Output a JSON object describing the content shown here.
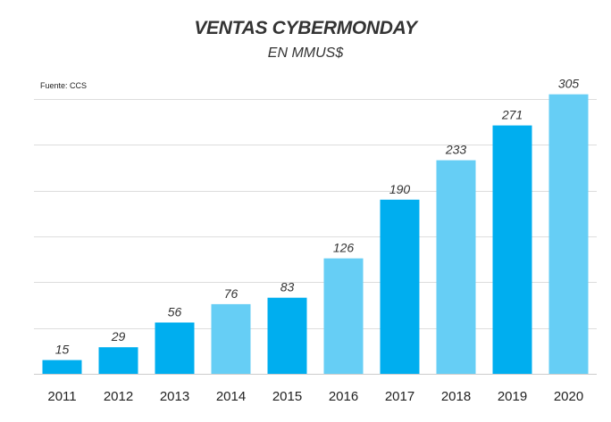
{
  "chart_data": {
    "type": "bar",
    "title": "VENTAS CYBERMONDAY",
    "subtitle": "EN MMUS$",
    "source": "Fuente: CCS",
    "xlabel": "",
    "ylabel": "",
    "ylim": [
      0,
      330
    ],
    "grid": true,
    "categories": [
      "2011",
      "2012",
      "2013",
      "2014",
      "2015",
      "2016",
      "2017",
      "2018",
      "2019",
      "2020"
    ],
    "values": [
      15,
      29,
      56,
      76,
      83,
      126,
      190,
      233,
      271,
      305
    ],
    "value_labels": [
      "15",
      "29",
      "56",
      "76",
      "83",
      "126",
      "190",
      "233",
      "271",
      "305"
    ],
    "bar_colors": [
      "#00aeef",
      "#00aeef",
      "#00aeef",
      "#66cef5",
      "#00aeef",
      "#66cef5",
      "#00aeef",
      "#66cef5",
      "#00aeef",
      "#66cef5"
    ]
  }
}
